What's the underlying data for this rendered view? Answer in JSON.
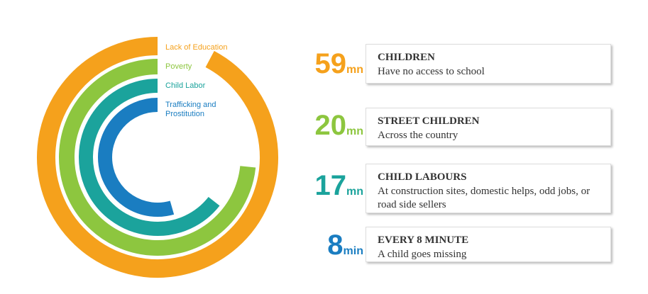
{
  "legend": [
    "Lack of Education",
    "Poverty",
    "Child Labor",
    "Trafficking and Prostitution"
  ],
  "stats": [
    {
      "number": "59",
      "unit": "mn",
      "heading": "CHILDREN",
      "text": "Have no access to school"
    },
    {
      "number": "20",
      "unit": "mn",
      "heading": "STREET CHILDREN",
      "text": "Across the country"
    },
    {
      "number": "17",
      "unit": "mn",
      "heading": "CHILD LABOURS",
      "text": "At construction sites, domestic helps, odd jobs, or road side sellers"
    },
    {
      "number": "8",
      "unit": "min",
      "heading": "EVERY 8 MINUTE",
      "text": "A  child goes missing"
    }
  ]
}
